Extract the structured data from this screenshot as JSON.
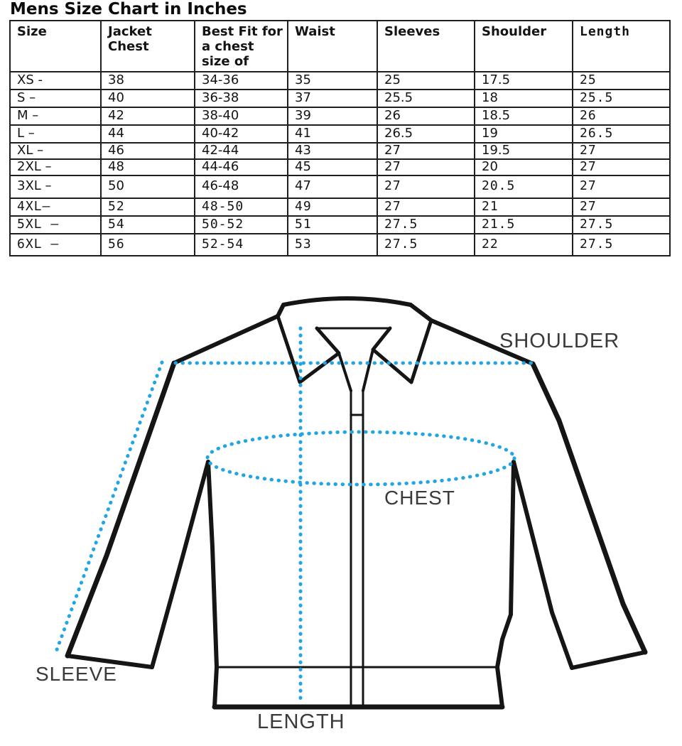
{
  "title": "Mens Size Chart in Inches",
  "table": {
    "headers": [
      "Size",
      "Jacket Chest",
      "Best Fit for a chest size of",
      "Waist",
      "Sleeves",
      "Shoulder",
      "Length"
    ],
    "rows": [
      [
        "XS -",
        "38",
        "34-36",
        "35",
        "25",
        "17.5",
        "25"
      ],
      [
        "S –",
        "40",
        "36-38",
        "37",
        "25.5",
        "18",
        "25.5"
      ],
      [
        "M –",
        "42",
        "38-40",
        "39",
        "26",
        "18.5",
        "26"
      ],
      [
        "L –",
        "44",
        "40-42",
        "41",
        "26.5",
        "19",
        "26.5"
      ],
      [
        "XL –",
        "46",
        "42-44",
        "43",
        "27",
        "19.5",
        "27"
      ],
      [
        "2XL –",
        "48",
        "44-46",
        "45",
        "27",
        "20",
        "27"
      ],
      [
        "3XL –",
        "50",
        "46-48",
        "47",
        "27",
        "20.5",
        "27"
      ],
      [
        "4XL–",
        "52",
        "48-50",
        "49",
        "27",
        "21",
        "27"
      ],
      [
        "5XL –",
        "54",
        "50-52",
        "51",
        "27.5",
        "21.5",
        "27.5"
      ],
      [
        "6XL –",
        "56",
        "52-54",
        "53",
        "27.5",
        "22",
        "27.5"
      ]
    ]
  },
  "diagram": {
    "labels": {
      "shoulder": "SHOULDER",
      "chest": "CHEST",
      "sleeve": "SLEEVE",
      "length": "LENGTH"
    }
  },
  "colors": {
    "dotted_measure_line": "#21a5e3",
    "jacket_outline": "#151515",
    "table_border": "#1f1f1f",
    "diagram_label": "#3a3a3a",
    "text": "#141414"
  }
}
